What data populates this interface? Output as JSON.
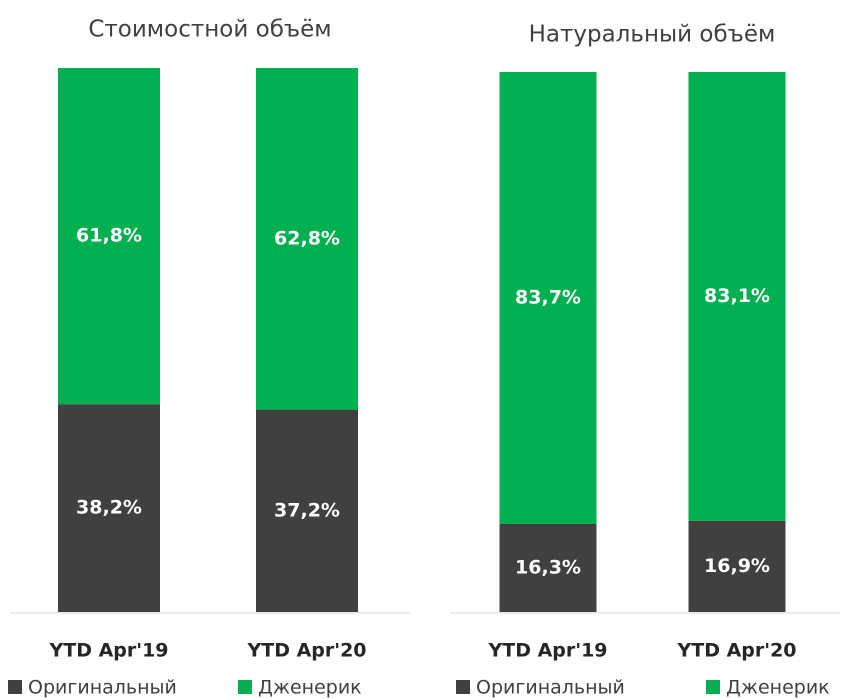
{
  "chart_data": [
    {
      "type": "stacked_bar",
      "title": "Стоимостной объём",
      "categories": [
        "YTD Apr'19",
        "YTD Apr'20"
      ],
      "ylim": [
        0,
        100
      ],
      "series": [
        {
          "name": "Оригинальный",
          "color": "#404040",
          "values": [
            38.2,
            37.2
          ],
          "value_labels": [
            "38,2%",
            "37,2%"
          ]
        },
        {
          "name": "Дженерик",
          "color": "#00b050",
          "values": [
            61.8,
            62.8
          ],
          "value_labels": [
            "61,8%",
            "62,8%"
          ]
        }
      ]
    },
    {
      "type": "stacked_bar",
      "title": "Натуральный объём",
      "categories": [
        "YTD Apr'19",
        "YTD Apr'20"
      ],
      "ylim": [
        0,
        100
      ],
      "series": [
        {
          "name": "Оригинальный",
          "color": "#404040",
          "values": [
            16.3,
            16.9
          ],
          "value_labels": [
            "16,3%",
            "16,9%"
          ]
        },
        {
          "name": "Дженерик",
          "color": "#00b050",
          "values": [
            83.7,
            83.1
          ],
          "value_labels": [
            "83,7%",
            "83,1%"
          ]
        }
      ]
    }
  ]
}
